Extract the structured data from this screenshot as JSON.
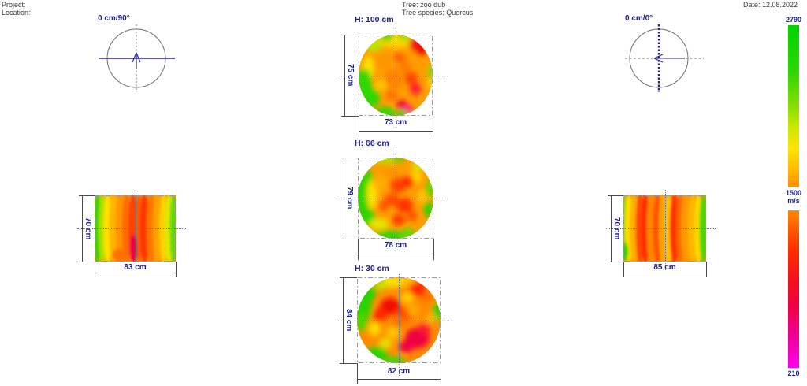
{
  "header": {
    "project_label": "Project:",
    "location_label": "Location:",
    "tree_line": "Tree: zoo dub",
    "species_line": "Tree species: Quercus",
    "date_line": "Date: 12.08.2022"
  },
  "compasses": {
    "left_label": "0 cm/90°",
    "right_label": "0 cm/0°"
  },
  "velocity_scale": {
    "max_label": "2790",
    "mid_label": "1500",
    "unit_label": "m/s",
    "min_label": "210",
    "top_stops": [
      "#00d400 0%",
      "#2ad600 28%",
      "#7ede00 48%",
      "#c6e800 62%",
      "#ffe400 76%",
      "#ffbe00 88%",
      "#ff8c00 100%"
    ],
    "bottom_stops": [
      "#ff8c00 0%",
      "#ff5a00 12%",
      "#ff2d00 26%",
      "#f50f1e 45%",
      "#f00048 62%",
      "#f000a0 82%",
      "#ff00f0 100%"
    ]
  },
  "tomograms": [
    {
      "id": "h100",
      "label": "H: 100 cm",
      "height_dim": "75 cm",
      "width_dim": "73 cm",
      "base": "#ff9c00",
      "blobs": [
        [
          50,
          7,
          32,
          9,
          "#ffd800"
        ],
        [
          20,
          13,
          12,
          8,
          "#bce400"
        ],
        [
          38,
          3,
          9,
          5,
          "#44d800"
        ],
        [
          62,
          3,
          10,
          5,
          "#a0e000"
        ],
        [
          79,
          11,
          11,
          9,
          "#f31616"
        ],
        [
          86,
          19,
          6,
          6,
          "#e60000"
        ],
        [
          13,
          42,
          8,
          16,
          "#ffe000"
        ],
        [
          7,
          60,
          11,
          18,
          "#2ed800"
        ],
        [
          16,
          78,
          13,
          12,
          "#2ed800"
        ],
        [
          36,
          96,
          13,
          7,
          "#2ed800"
        ],
        [
          58,
          99,
          9,
          6,
          "#2ed800"
        ],
        [
          98,
          46,
          5,
          9,
          "#8ae000"
        ],
        [
          97,
          60,
          4,
          6,
          "#ffd800"
        ],
        [
          71,
          54,
          9,
          8,
          "#ff4400"
        ],
        [
          77,
          67,
          8,
          7,
          "#ff1c30"
        ],
        [
          58,
          87,
          8,
          6,
          "#ef0040"
        ],
        [
          67,
          92,
          6,
          5,
          "#ff10a0"
        ],
        [
          47,
          55,
          13,
          12,
          "#ff8400"
        ],
        [
          33,
          33,
          11,
          9,
          "#ff9400"
        ],
        [
          55,
          28,
          8,
          6,
          "#ff6000"
        ],
        [
          30,
          62,
          8,
          7,
          "#ffc400"
        ],
        [
          44,
          75,
          8,
          6,
          "#ff7000"
        ],
        [
          63,
          40,
          8,
          7,
          "#ff7800"
        ]
      ]
    },
    {
      "id": "h66",
      "label": "H: 66 cm",
      "height_dim": "79 cm",
      "width_dim": "78 cm",
      "base": "#ff9c00",
      "blobs": [
        [
          6,
          48,
          10,
          26,
          "#2cd600"
        ],
        [
          12,
          26,
          8,
          11,
          "#2cd600"
        ],
        [
          13,
          74,
          10,
          11,
          "#2cd600"
        ],
        [
          42,
          98,
          22,
          8,
          "#2cd600"
        ],
        [
          66,
          94,
          10,
          7,
          "#5ada00"
        ],
        [
          96,
          38,
          6,
          11,
          "#52da00"
        ],
        [
          94,
          64,
          7,
          10,
          "#2cd600"
        ],
        [
          38,
          2,
          22,
          5,
          "#b2e400"
        ],
        [
          54,
          1,
          8,
          4,
          "#40d800"
        ],
        [
          80,
          10,
          9,
          6,
          "#d2e600"
        ],
        [
          19,
          45,
          7,
          18,
          "#ffe000"
        ],
        [
          28,
          82,
          13,
          7,
          "#e6e600"
        ],
        [
          76,
          24,
          9,
          7,
          "#ffd400"
        ],
        [
          85,
          48,
          6,
          8,
          "#ffc800"
        ],
        [
          54,
          34,
          11,
          9,
          "#ff3c00"
        ],
        [
          67,
          29,
          7,
          7,
          "#ff2600"
        ],
        [
          45,
          52,
          9,
          8,
          "#ff4800"
        ],
        [
          62,
          59,
          11,
          9,
          "#ff3000"
        ],
        [
          54,
          77,
          9,
          7,
          "#ff3a00"
        ],
        [
          34,
          59,
          7,
          7,
          "#ff5600"
        ],
        [
          28,
          32,
          9,
          7,
          "#ffb400"
        ],
        [
          45,
          20,
          8,
          6,
          "#ff9000"
        ],
        [
          72,
          72,
          7,
          6,
          "#ff5000"
        ]
      ]
    },
    {
      "id": "h30",
      "label": "H: 30 cm",
      "height_dim": "84 cm",
      "width_dim": "82 cm",
      "base": "#ff8c00",
      "blobs": [
        [
          7,
          33,
          11,
          20,
          "#28d400"
        ],
        [
          14,
          18,
          9,
          9,
          "#28d400"
        ],
        [
          5,
          52,
          7,
          11,
          "#46d800"
        ],
        [
          23,
          90,
          13,
          9,
          "#28d400"
        ],
        [
          44,
          98,
          14,
          6,
          "#40d800"
        ],
        [
          97,
          40,
          6,
          11,
          "#2ed800"
        ],
        [
          44,
          5,
          16,
          7,
          "#ffe000"
        ],
        [
          29,
          9,
          8,
          6,
          "#bee400"
        ],
        [
          60,
          3,
          8,
          5,
          "#ffc800"
        ],
        [
          73,
          14,
          10,
          8,
          "#ff2600"
        ],
        [
          84,
          24,
          7,
          6,
          "#ff7000"
        ],
        [
          40,
          34,
          13,
          10,
          "#f21000"
        ],
        [
          27,
          44,
          9,
          8,
          "#ff2600"
        ],
        [
          55,
          44,
          9,
          8,
          "#ff4600"
        ],
        [
          67,
          38,
          7,
          6,
          "#ffae00"
        ],
        [
          60,
          24,
          7,
          6,
          "#ffd800"
        ],
        [
          72,
          71,
          15,
          12,
          "#ef0040"
        ],
        [
          81,
          60,
          7,
          7,
          "#ff1430"
        ],
        [
          59,
          81,
          9,
          7,
          "#f00048"
        ],
        [
          43,
          64,
          9,
          7,
          "#ffc400"
        ],
        [
          34,
          77,
          8,
          6,
          "#e6e200"
        ],
        [
          21,
          60,
          7,
          8,
          "#ffe000"
        ],
        [
          50,
          52,
          8,
          7,
          "#ff7000"
        ],
        [
          88,
          48,
          6,
          6,
          "#ffb400"
        ]
      ]
    }
  ],
  "side_views": [
    {
      "id": "left",
      "height_dim": "70 cm",
      "width_dim": "83 cm",
      "base": "#ff9800",
      "stripes": [
        [
          0,
          7,
          "#34d400"
        ],
        [
          6,
          7,
          "#a8e000"
        ],
        [
          12,
          8,
          "#ffe000"
        ],
        [
          19,
          9,
          "#ffb400"
        ],
        [
          27,
          9,
          "#ff9400"
        ],
        [
          35,
          9,
          "#ff6a00"
        ],
        [
          43,
          9,
          "#ff4000"
        ],
        [
          51,
          7,
          "#ff5c00"
        ],
        [
          57,
          9,
          "#ff3400"
        ],
        [
          65,
          9,
          "#ff7400"
        ],
        [
          73,
          9,
          "#ffa200"
        ],
        [
          81,
          8,
          "#ffd200"
        ],
        [
          88,
          8,
          "#dce800"
        ],
        [
          94,
          6,
          "#5cd800"
        ]
      ],
      "spots": [
        [
          48,
          80,
          5,
          22,
          "#ef0040"
        ],
        [
          30,
          90,
          8,
          10,
          "#ff7000"
        ]
      ]
    },
    {
      "id": "right",
      "height_dim": "70 cm",
      "width_dim": "85 cm",
      "base": "#ff9000",
      "stripes": [
        [
          0,
          3,
          "#7ade00"
        ],
        [
          3,
          7,
          "#ffdc00"
        ],
        [
          9,
          8,
          "#ffae00"
        ],
        [
          16,
          8,
          "#ff4600"
        ],
        [
          23,
          7,
          "#ff2a00"
        ],
        [
          29,
          9,
          "#ff8400"
        ],
        [
          37,
          8,
          "#ff5200"
        ],
        [
          44,
          8,
          "#ffa400"
        ],
        [
          51,
          7,
          "#ffc400"
        ],
        [
          57,
          9,
          "#ff3200"
        ],
        [
          65,
          7,
          "#ff6600"
        ],
        [
          71,
          9,
          "#ff9a00"
        ],
        [
          79,
          9,
          "#ffb600"
        ],
        [
          87,
          7,
          "#ffd800"
        ],
        [
          93,
          7,
          "#48d800"
        ]
      ],
      "spots": [
        [
          2,
          85,
          4,
          14,
          "#30d400"
        ]
      ]
    }
  ],
  "colors": {
    "label_navy": "#1d1d8f",
    "line_gray": "#4a4a4a",
    "box_gray": "#9a9a9a",
    "dot_gray": "#6f6f6f",
    "circle_gray": "#707070"
  }
}
